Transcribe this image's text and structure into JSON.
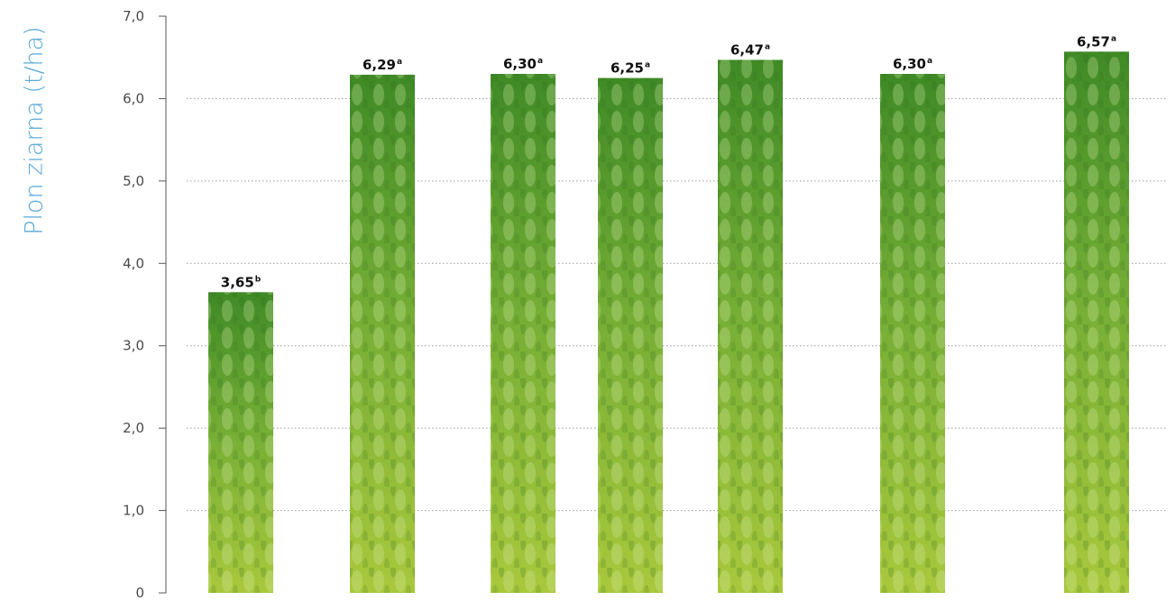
{
  "chart_data": {
    "type": "bar",
    "ylabel": "Plon ziarna (t/ha)",
    "xlabel": "",
    "ylim": [
      0,
      7
    ],
    "yticks": [
      {
        "value": 0,
        "label": "0"
      },
      {
        "value": 1,
        "label": "1,0"
      },
      {
        "value": 2,
        "label": "2,0"
      },
      {
        "value": 3,
        "label": "3,0"
      },
      {
        "value": 4,
        "label": "4,0"
      },
      {
        "value": 5,
        "label": "5,0"
      },
      {
        "value": 6,
        "label": "6,0"
      },
      {
        "value": 7,
        "label": "7,0"
      }
    ],
    "grid": true,
    "bars": [
      {
        "value": 3.65,
        "label": "3,65",
        "letter": "b"
      },
      {
        "value": 6.29,
        "label": "6,29",
        "letter": "a"
      },
      {
        "value": 6.3,
        "label": "6,30",
        "letter": "a"
      },
      {
        "value": 6.25,
        "label": "6,25",
        "letter": "a"
      },
      {
        "value": 6.47,
        "label": "6,47",
        "letter": "a"
      },
      {
        "value": 6.3,
        "label": "6,30",
        "letter": "a"
      },
      {
        "value": 6.57,
        "label": "6,57",
        "letter": "a"
      }
    ],
    "colors": {
      "axis_label": "#5aa9d6",
      "bar_top": "#3f8a26",
      "bar_mid": "#74ad35",
      "bar_bottom": "#a9c83c",
      "grid": "#9a9a9a",
      "axis": "#555555"
    }
  }
}
